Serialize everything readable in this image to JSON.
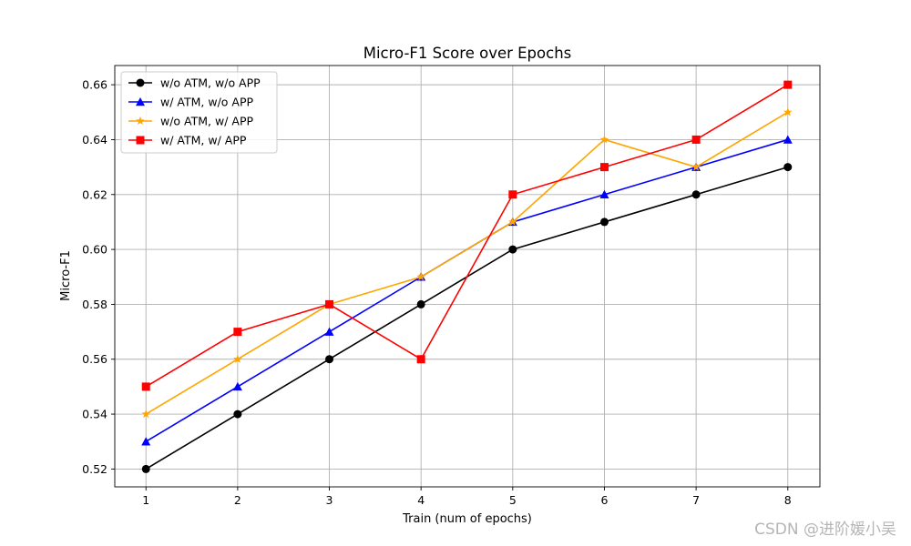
{
  "chart_data": {
    "type": "line",
    "title": "Micro-F1 Score over Epochs",
    "xlabel": "Train (num of epochs)",
    "ylabel": "Micro-F1",
    "x": [
      1,
      2,
      3,
      4,
      5,
      6,
      7,
      8
    ],
    "xlim": [
      0.66,
      8.35
    ],
    "ylim": [
      0.5135,
      0.667
    ],
    "yticks": [
      0.52,
      0.54,
      0.56,
      0.58,
      0.6,
      0.62,
      0.64,
      0.66
    ],
    "ytick_labels": [
      "0.52",
      "0.54",
      "0.56",
      "0.58",
      "0.60",
      "0.62",
      "0.64",
      "0.66"
    ],
    "xtick_labels": [
      "1",
      "2",
      "3",
      "4",
      "5",
      "6",
      "7",
      "8"
    ],
    "grid": true,
    "legend_position": "top-left",
    "series": [
      {
        "name": "w/o ATM, w/o APP",
        "color": "#000000",
        "marker": "circle",
        "values": [
          0.52,
          0.54,
          0.56,
          0.58,
          0.6,
          0.61,
          0.62,
          0.63
        ]
      },
      {
        "name": "w/ ATM, w/o APP",
        "color": "#0000ff",
        "marker": "triangle",
        "values": [
          0.53,
          0.55,
          0.57,
          0.59,
          0.61,
          0.62,
          0.63,
          0.64
        ]
      },
      {
        "name": "w/o ATM, w/ APP",
        "color": "#ffa500",
        "marker": "star",
        "values": [
          0.54,
          0.56,
          0.58,
          0.59,
          0.61,
          0.64,
          0.63,
          0.65
        ]
      },
      {
        "name": "w/ ATM, w/ APP",
        "color": "#ff0000",
        "marker": "square",
        "values": [
          0.55,
          0.57,
          0.58,
          0.56,
          0.62,
          0.63,
          0.64,
          0.66
        ]
      }
    ]
  },
  "watermark": "CSDN @进阶媛小吴"
}
